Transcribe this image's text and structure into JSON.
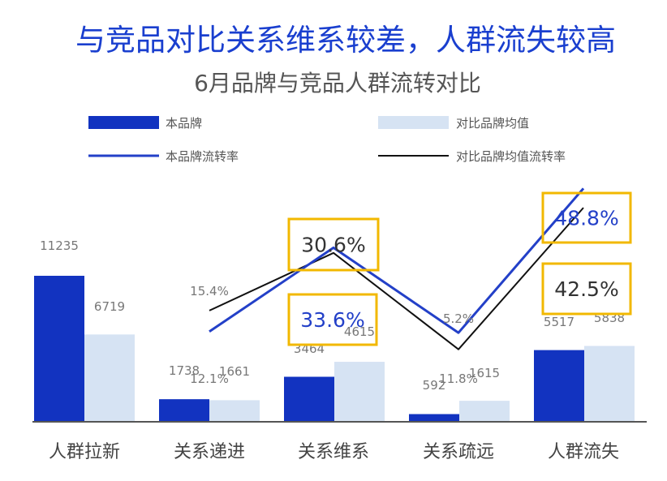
{
  "headline": "与竞品对比关系维系较差，人群流失较高",
  "colors": {
    "headline": "#1a3fcf",
    "subtitle": "#555555",
    "bar_brand": "#1233c0",
    "bar_compare": "#d6e3f3",
    "line_brand": "#2340c8",
    "line_compare": "#111111",
    "highlight_box": "#f2b800",
    "axis": "#555555",
    "label_text": "#777777"
  },
  "chart_data": {
    "type": "bar",
    "title": "6月品牌与竞品人群流转对比",
    "categories": [
      "人群拉新",
      "关系递进",
      "关系维系",
      "关系疏远",
      "人群流失"
    ],
    "series": [
      {
        "name": "本品牌",
        "kind": "bar",
        "values": [
          11235,
          1738,
          3464,
          592,
          5517
        ]
      },
      {
        "name": "对比品牌均值",
        "kind": "bar",
        "values": [
          6719,
          1661,
          4615,
          1615,
          5838
        ]
      }
    ],
    "line_series": [
      {
        "name": "本品牌流转率",
        "values": [
          null,
          12.1,
          33.6,
          11.8,
          48.8
        ]
      },
      {
        "name": "对比品牌均值流转率",
        "values": [
          null,
          15.4,
          30.6,
          5.2,
          42.5
        ]
      }
    ],
    "bar_labels": {
      "brand": [
        "11235",
        "1738",
        "3464",
        "592",
        "5517"
      ],
      "compare": [
        "6719",
        "1661",
        "4615",
        "1615",
        "5838"
      ]
    },
    "rate_labels": {
      "compare_small": [
        null,
        "15.4%",
        null,
        "5.2%",
        null
      ],
      "brand_small": [
        null,
        "12.1%",
        null,
        "11.8%",
        null
      ]
    },
    "highlighted_labels": [
      "30.6%",
      "33.6%",
      "48.8%",
      "42.5%"
    ],
    "legend_position": "top",
    "grid": false
  }
}
